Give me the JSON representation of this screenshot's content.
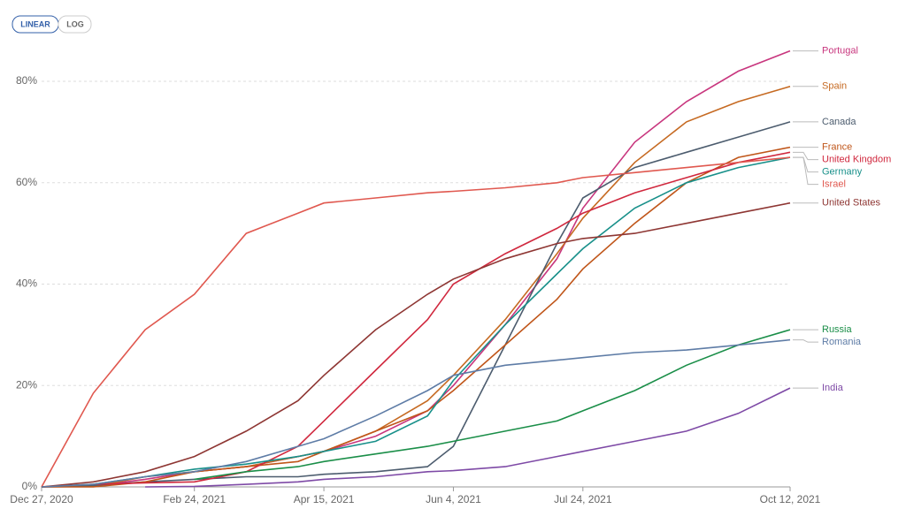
{
  "chart_data": {
    "type": "line",
    "scale_options": [
      "LINEAR",
      "LOG"
    ],
    "log_scale": false,
    "grid": true,
    "x": [
      "Dec 27, 2020",
      "Jan 16, 2021",
      "Feb 5, 2021",
      "Feb 24, 2021",
      "Mar 16, 2021",
      "Apr 5, 2021",
      "Apr 15, 2021",
      "May 5, 2021",
      "May 25, 2021",
      "Jun 4, 2021",
      "Jun 24, 2021",
      "Jul 14, 2021",
      "Jul 24, 2021",
      "Aug 13, 2021",
      "Sep 2, 2021",
      "Sep 22, 2021",
      "Oct 12, 2021"
    ],
    "xlim": [
      "Dec 27, 2020",
      "Oct 12, 2021"
    ],
    "xticks": [
      "Dec 27, 2020",
      "Feb 24, 2021",
      "Apr 15, 2021",
      "Jun 4, 2021",
      "Jul 24, 2021",
      "Oct 12, 2021"
    ],
    "ylim": [
      0,
      86
    ],
    "yticks": [
      {
        "value": 0,
        "label": "0%"
      },
      {
        "value": 20,
        "label": "20%"
      },
      {
        "value": 40,
        "label": "40%"
      },
      {
        "value": 60,
        "label": "60%"
      },
      {
        "value": 80,
        "label": "80%"
      }
    ],
    "series": [
      {
        "name": "Portugal",
        "color": "#c8367e",
        "values": [
          0,
          0.2,
          1.5,
          3,
          4,
          6,
          7,
          10,
          15,
          20,
          32,
          45,
          55,
          68,
          76,
          82,
          86
        ]
      },
      {
        "name": "Spain",
        "color": "#c66a22",
        "values": [
          0,
          0.1,
          2,
          3,
          4,
          6,
          7,
          11,
          17,
          22,
          33,
          46,
          53,
          64,
          72,
          76,
          79
        ]
      },
      {
        "name": "Canada",
        "color": "#4c5c6e",
        "values": [
          0,
          0.3,
          1,
          1.5,
          2,
          2,
          2.5,
          3,
          4,
          8,
          28,
          48,
          57,
          63,
          66,
          69,
          72
        ]
      },
      {
        "name": "France",
        "color": "#c0561a",
        "values": [
          0,
          0,
          1,
          3,
          4,
          5,
          7,
          11,
          15,
          19,
          28,
          37,
          43,
          52,
          60,
          65,
          67
        ]
      },
      {
        "name": "United Kingdom",
        "color": "#d0283e",
        "values": [
          0,
          0.5,
          0.8,
          1,
          3,
          8,
          13,
          23,
          33,
          40,
          46,
          51,
          54,
          58,
          61,
          64,
          66
        ]
      },
      {
        "name": "Germany",
        "color": "#18908a",
        "values": [
          0,
          0.5,
          2,
          3.5,
          4.5,
          6,
          7,
          9,
          14,
          21,
          32,
          42,
          47,
          55,
          60,
          63,
          65
        ]
      },
      {
        "name": "Israel",
        "color": "#e0584f",
        "values": [
          0,
          18.5,
          31,
          38,
          50,
          54,
          56,
          57,
          58,
          58.3,
          59,
          60,
          61,
          62,
          63,
          64,
          65
        ]
      },
      {
        "name": "United States",
        "color": "#8e3633",
        "values": [
          0,
          1,
          3,
          6,
          11,
          17,
          22,
          31,
          38,
          41,
          45,
          48,
          49,
          50,
          52,
          54,
          56
        ]
      },
      {
        "name": "Russia",
        "color": "#1a8e48",
        "values": [
          null,
          null,
          null,
          1.5,
          3,
          4,
          5,
          6.5,
          8,
          9,
          11,
          13,
          15,
          19,
          24,
          28,
          31
        ]
      },
      {
        "name": "Romania",
        "color": "#5e7ca6",
        "values": [
          0,
          0.5,
          2,
          3,
          5,
          8,
          9.5,
          14,
          19,
          22,
          24,
          25,
          25.5,
          26.5,
          27,
          28,
          29
        ]
      },
      {
        "name": "India",
        "color": "#7e4aa6",
        "values": [
          null,
          null,
          0,
          0.1,
          0.5,
          1,
          1.5,
          2,
          3,
          3.2,
          4,
          6,
          7,
          9,
          11,
          14.5,
          19.5
        ]
      }
    ]
  }
}
